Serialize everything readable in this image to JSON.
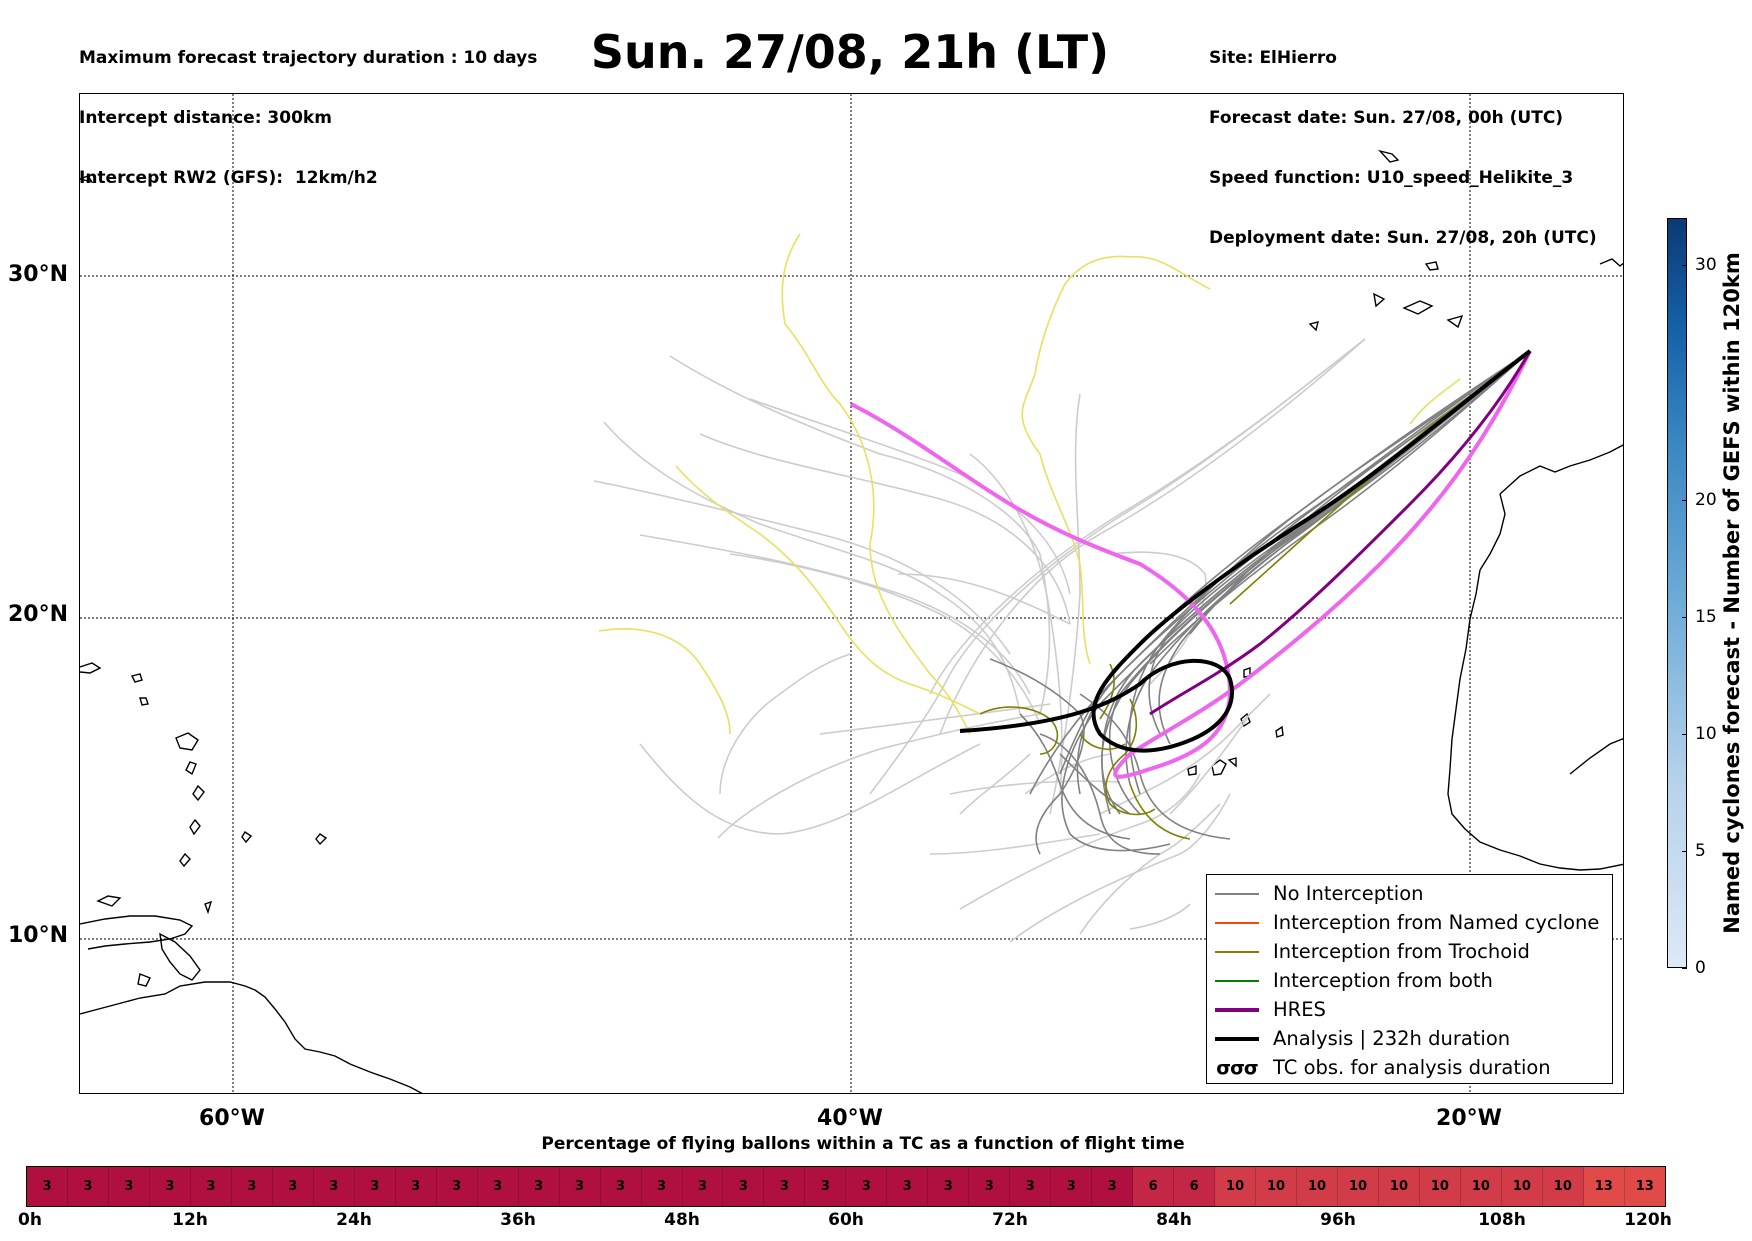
{
  "header": {
    "left_lines": [
      "Maximum forecast trajectory duration : 10 days",
      "Intercept distance: 300km",
      "Intercept RW2 (GFS):  12km/h2"
    ],
    "title": "Sun. 27/08, 21h (LT)",
    "right_lines": [
      "Site: ElHierro",
      "Forecast date: Sun. 27/08, 00h (UTC)",
      "Speed function: U10_speed_Helikite_3",
      "Deployment date: Sun. 27/08, 20h (UTC)"
    ]
  },
  "map": {
    "lat_labels": [
      "30°N",
      "20°N",
      "10°N"
    ],
    "lon_labels": [
      "60°W",
      "40°W",
      "20°W"
    ],
    "track_colors": {
      "no_interception": "#808080",
      "light_track": "#c8c8c8",
      "trochoid": "#808000",
      "yellow_track": "#e8e060",
      "hres": "#ee66ee",
      "analysis": "#000000"
    }
  },
  "legend": {
    "items": [
      {
        "label": "No Interception",
        "color": "#808080",
        "style": "thin"
      },
      {
        "label": "Interception from Named cyclone",
        "color": "#ff4500",
        "style": "thin"
      },
      {
        "label": "Interception from Trochoid",
        "color": "#808000",
        "style": "thin"
      },
      {
        "label": "Interception from both",
        "color": "#008000",
        "style": "thin"
      },
      {
        "label": "HRES",
        "color": "#800080",
        "style": "thick"
      },
      {
        "label": "Analysis | 232h duration",
        "color": "#000000",
        "style": "thick"
      },
      {
        "label": "TC obs. for analysis duration",
        "symbol": "σσσ",
        "style": "symbol"
      }
    ]
  },
  "colorbar": {
    "label": "Named cyclones forecast - Number of GEFS within 120km",
    "ticks": [
      "0",
      "5",
      "10",
      "15",
      "20",
      "30"
    ],
    "min": 0,
    "max": 32
  },
  "flight_bar": {
    "title": "Percentage of flying ballons within a TC as a function of flight time",
    "values": [
      3,
      3,
      3,
      3,
      3,
      3,
      3,
      3,
      3,
      3,
      3,
      3,
      3,
      3,
      3,
      3,
      3,
      3,
      3,
      3,
      3,
      3,
      3,
      3,
      3,
      3,
      3,
      6,
      6,
      10,
      10,
      10,
      10,
      10,
      10,
      10,
      10,
      10,
      13,
      13
    ],
    "tick_labels": [
      "0h",
      "12h",
      "24h",
      "36h",
      "48h",
      "60h",
      "72h",
      "84h",
      "96h",
      "108h",
      "120h"
    ],
    "colors": {
      "3": "#b01040",
      "6": "#c42645",
      "10": "#d23c48",
      "13": "#e04a48"
    }
  }
}
